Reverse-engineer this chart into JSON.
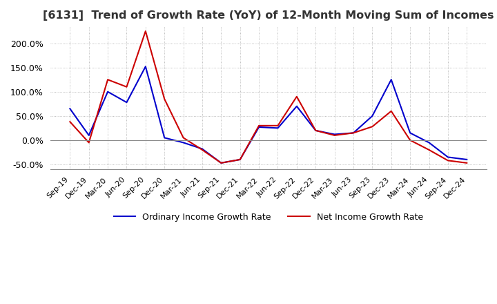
{
  "title": "[6131]  Trend of Growth Rate (YoY) of 12-Month Moving Sum of Incomes",
  "title_fontsize": 11.5,
  "ylim": [
    -60,
    235
  ],
  "yticks": [
    -50,
    0,
    50,
    100,
    150,
    200
  ],
  "background_color": "#ffffff",
  "grid_color": "#aaaaaa",
  "ordinary_color": "#0000cc",
  "net_color": "#cc0000",
  "legend_labels": [
    "Ordinary Income Growth Rate",
    "Net Income Growth Rate"
  ],
  "x_labels": [
    "Sep-19",
    "Dec-19",
    "Mar-20",
    "Jun-20",
    "Sep-20",
    "Dec-20",
    "Mar-21",
    "Jun-21",
    "Sep-21",
    "Dec-21",
    "Mar-22",
    "Jun-22",
    "Sep-22",
    "Dec-22",
    "Mar-23",
    "Jun-23",
    "Sep-23",
    "Dec-23",
    "Mar-24",
    "Jun-24",
    "Sep-24",
    "Dec-24"
  ],
  "ordinary_income": [
    65,
    10,
    100,
    78,
    152,
    5,
    -5,
    -18,
    -47,
    -40,
    27,
    25,
    70,
    20,
    12,
    15,
    50,
    125,
    15,
    -5,
    -35,
    -40
  ],
  "net_income": [
    38,
    -5,
    125,
    110,
    225,
    85,
    5,
    -20,
    -47,
    -40,
    30,
    30,
    90,
    20,
    10,
    15,
    28,
    60,
    0,
    -20,
    -42,
    -47
  ]
}
